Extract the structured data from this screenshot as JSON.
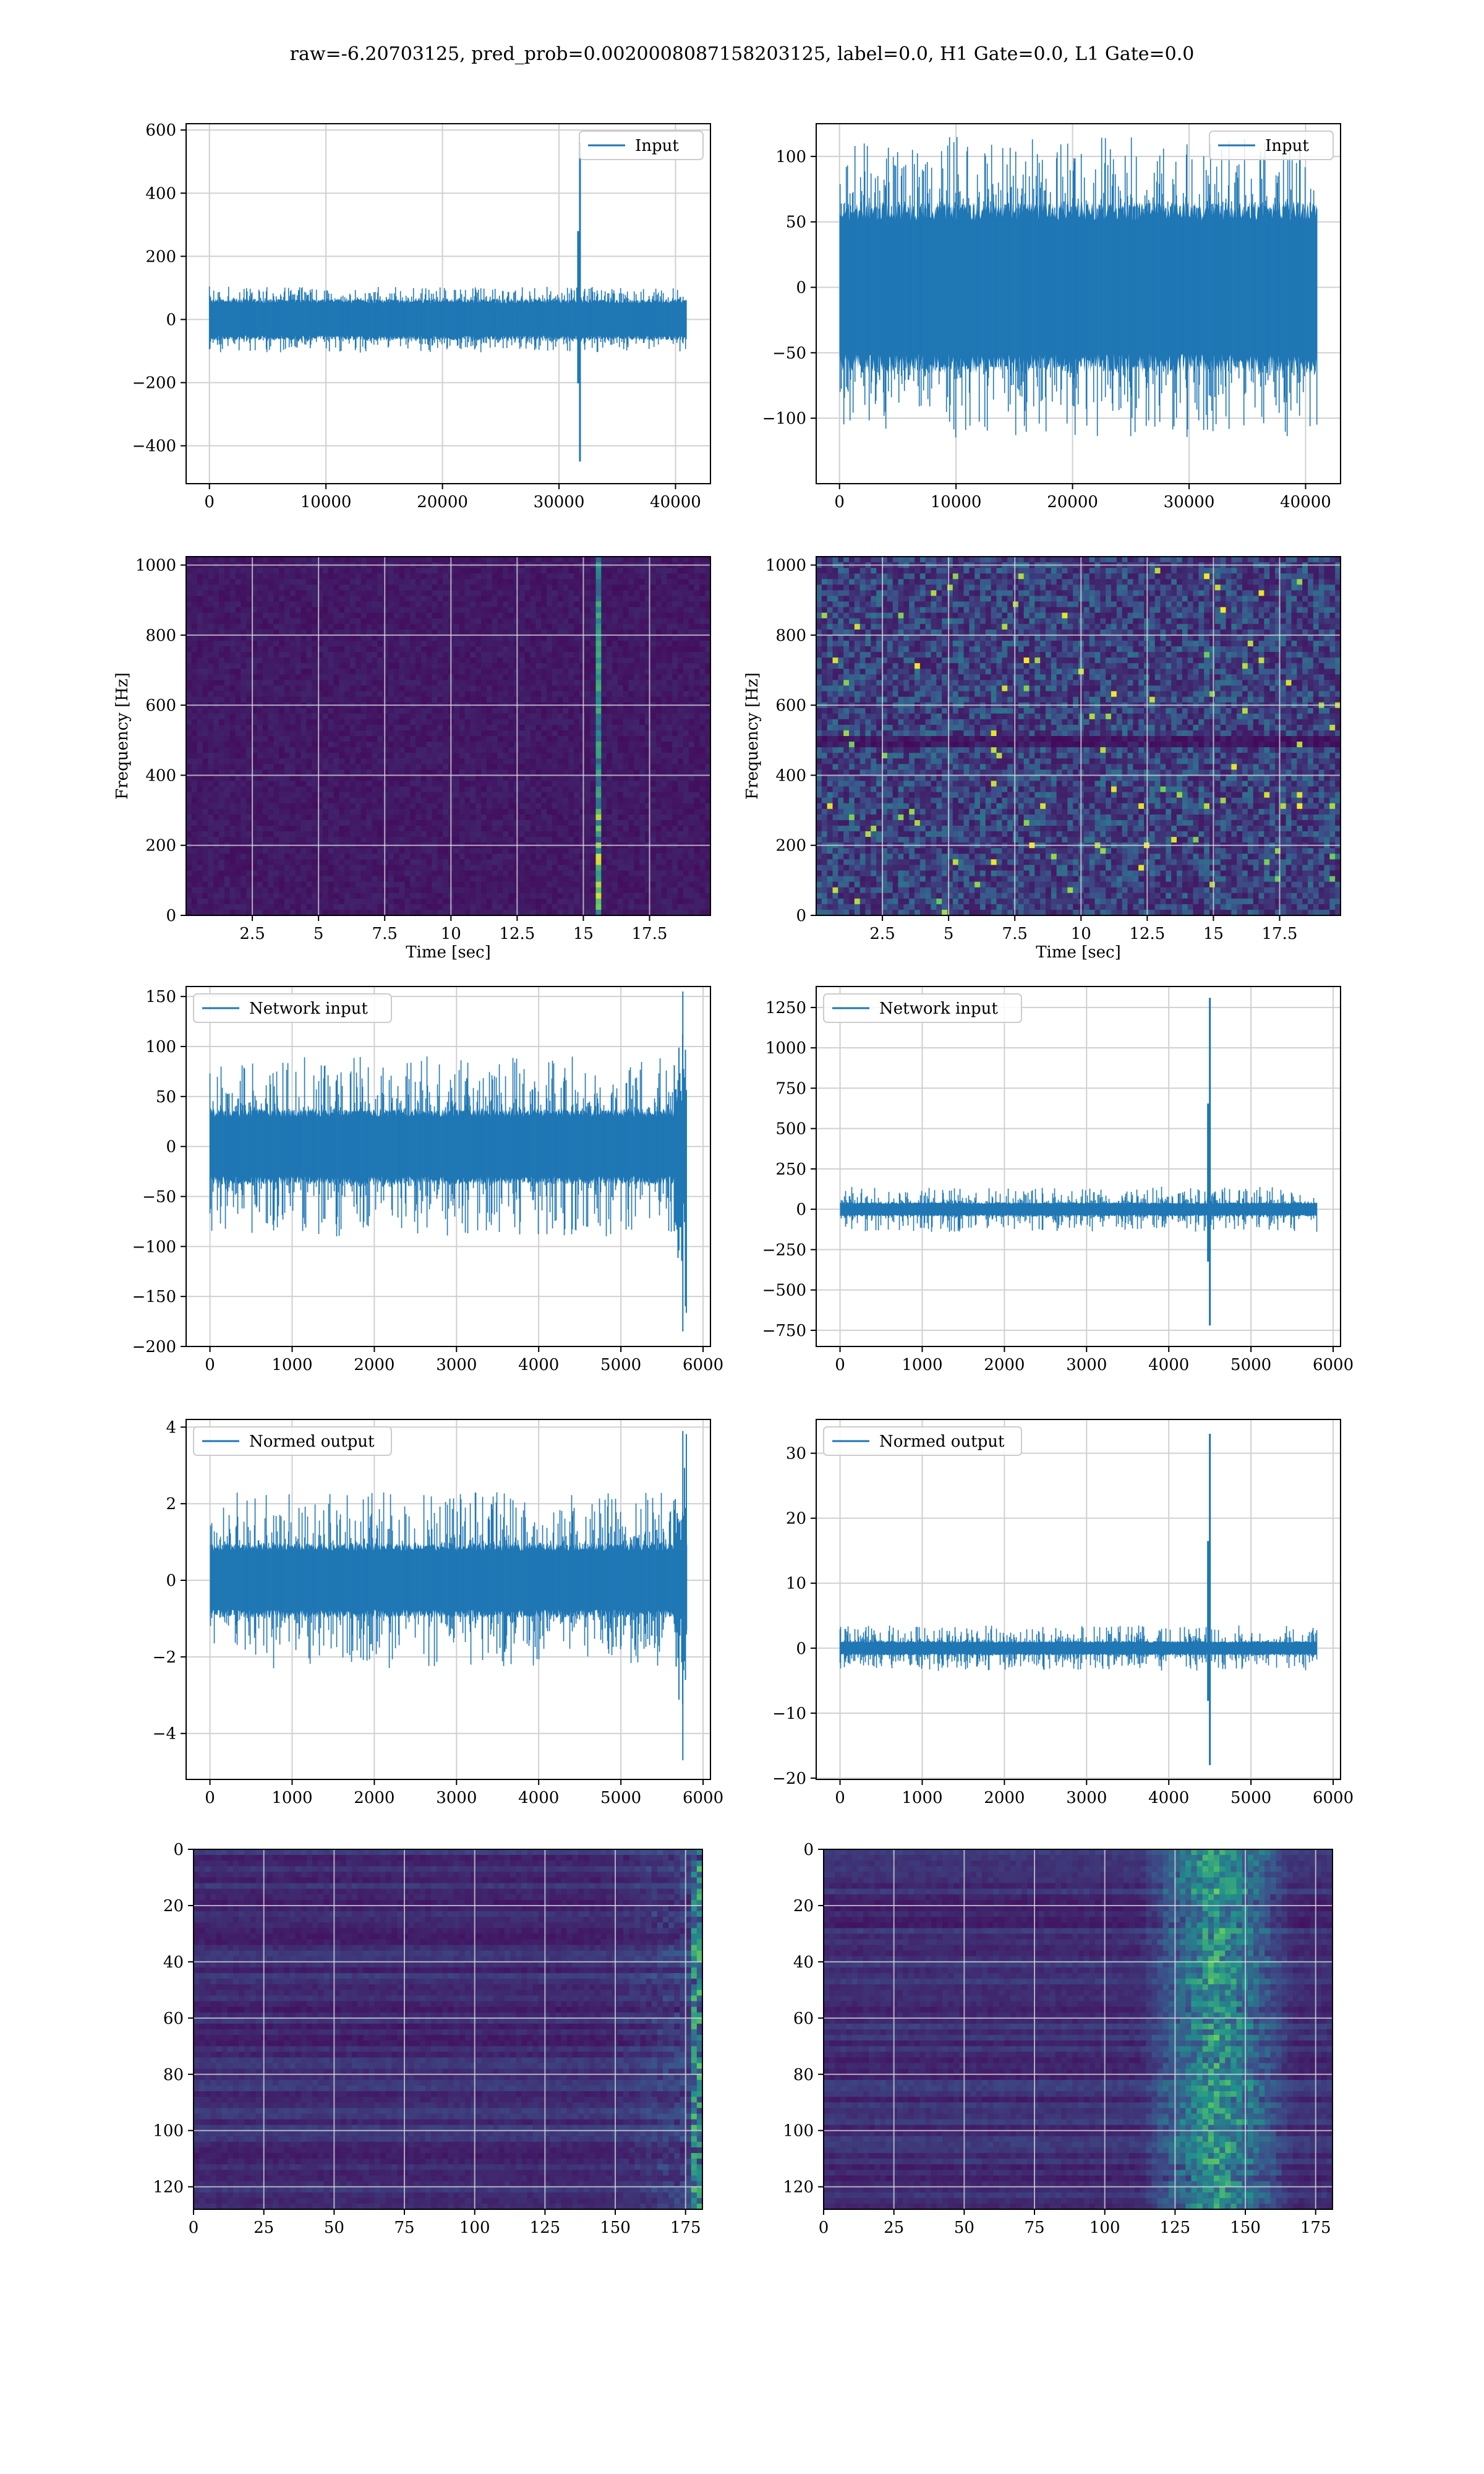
{
  "title": "raw=-6.20703125, pred_prob=0.0020008087158203125, label=0.0, H1 Gate=0.0, L1 Gate=0.0",
  "colors": {
    "line": "#1f77b4",
    "grid": "#d0d0d0",
    "viridis_dark": "#440154",
    "viridis_mid": "#3b528b",
    "viridis_teal": "#21908d",
    "viridis_green": "#5dc963",
    "viridis_yellow": "#fde725"
  },
  "chart_data": [
    {
      "id": "input-h1",
      "type": "line",
      "legend": "Input",
      "legend_pos": "top-right",
      "xlim": [
        -2000,
        43000
      ],
      "ylim": [
        -520,
        620
      ],
      "xticks": [
        0,
        10000,
        20000,
        30000,
        40000
      ],
      "yticks": [
        -400,
        -200,
        0,
        200,
        400,
        600
      ],
      "n_samples": 40960,
      "noise_amplitude": 60,
      "noise_max": 105,
      "glitch": {
        "x": 31800,
        "peak": 560,
        "trough": -450
      }
    },
    {
      "id": "input-l1",
      "type": "line",
      "legend": "Input",
      "legend_pos": "top-right",
      "xlim": [
        -2000,
        43000
      ],
      "ylim": [
        -150,
        125
      ],
      "xticks": [
        0,
        10000,
        20000,
        30000,
        40000
      ],
      "yticks": [
        -100,
        -50,
        0,
        50,
        100
      ],
      "n_samples": 40960,
      "noise_amplitude": 60,
      "noise_max": 115
    },
    {
      "id": "spec-h1",
      "type": "heatmap",
      "kind": "spectrogram",
      "xlabel": "Time [sec]",
      "ylabel": "Frequency [Hz]",
      "xlim": [
        0,
        19.8
      ],
      "ylim": [
        0,
        1024
      ],
      "xticks": [
        2.5,
        5.0,
        7.5,
        10.0,
        12.5,
        15.0,
        17.5
      ],
      "yticks": [
        0,
        200,
        400,
        600,
        800,
        1000
      ],
      "glitch_time": 15.5
    },
    {
      "id": "spec-l1",
      "type": "heatmap",
      "kind": "spectrogram",
      "xlabel": "Time [sec]",
      "ylabel": "Frequency [Hz]",
      "xlim": [
        0,
        19.8
      ],
      "ylim": [
        0,
        1024
      ],
      "xticks": [
        2.5,
        5.0,
        7.5,
        10.0,
        12.5,
        15.0,
        17.5
      ],
      "yticks": [
        0,
        200,
        400,
        600,
        800,
        1000
      ],
      "band_hz": 495
    },
    {
      "id": "net-h1",
      "type": "line",
      "legend": "Network input",
      "legend_pos": "top-left",
      "xlim": [
        -290,
        6090
      ],
      "ylim": [
        -200,
        160
      ],
      "xticks": [
        0,
        1000,
        2000,
        3000,
        4000,
        5000,
        6000
      ],
      "yticks": [
        -200,
        -150,
        -100,
        -50,
        0,
        50,
        100,
        150
      ],
      "n_samples": 5800,
      "noise_amplitude": 35,
      "noise_max": 90,
      "tail": {
        "start": 5650,
        "peak": 155,
        "trough": -185
      }
    },
    {
      "id": "net-l1",
      "type": "line",
      "legend": "Network input",
      "legend_pos": "top-left",
      "xlim": [
        -290,
        6090
      ],
      "ylim": [
        -850,
        1380
      ],
      "xticks": [
        0,
        1000,
        2000,
        3000,
        4000,
        5000,
        6000
      ],
      "yticks": [
        -750,
        -500,
        -250,
        0,
        250,
        500,
        750,
        1000,
        1250
      ],
      "n_samples": 5800,
      "noise_amplitude": 40,
      "noise_max": 140,
      "glitch": {
        "x": 4500,
        "peak": 1310,
        "trough": -720
      }
    },
    {
      "id": "norm-h1",
      "type": "line",
      "legend": "Normed output",
      "legend_pos": "top-left",
      "xlim": [
        -290,
        6090
      ],
      "ylim": [
        -5.2,
        4.2
      ],
      "xticks": [
        0,
        1000,
        2000,
        3000,
        4000,
        5000,
        6000
      ],
      "yticks": [
        -4,
        -2,
        0,
        2,
        4
      ],
      "n_samples": 5800,
      "noise_amplitude": 0.9,
      "noise_max": 2.3,
      "tail": {
        "start": 5650,
        "peak": 3.9,
        "trough": -4.7
      }
    },
    {
      "id": "norm-l1",
      "type": "line",
      "legend": "Normed output",
      "legend_pos": "top-left",
      "xlim": [
        -290,
        6090
      ],
      "ylim": [
        -20.2,
        35.2
      ],
      "xticks": [
        0,
        1000,
        2000,
        3000,
        4000,
        5000,
        6000
      ],
      "yticks": [
        -20,
        -10,
        0,
        10,
        20,
        30
      ],
      "n_samples": 5800,
      "noise_amplitude": 1.0,
      "noise_max": 3.5,
      "glitch": {
        "x": 4500,
        "peak": 33,
        "trough": -18
      }
    },
    {
      "id": "feat-h1",
      "type": "heatmap",
      "kind": "feature-map",
      "xlim": [
        0,
        181
      ],
      "ylim": [
        128,
        0
      ],
      "xticks": [
        0,
        25,
        50,
        75,
        100,
        125,
        150,
        175
      ],
      "yticks": [
        0,
        20,
        40,
        60,
        80,
        100,
        120
      ],
      "hot_region_x": [
        145,
        181
      ]
    },
    {
      "id": "feat-l1",
      "type": "heatmap",
      "kind": "feature-map",
      "xlim": [
        0,
        181
      ],
      "ylim": [
        128,
        0
      ],
      "xticks": [
        0,
        25,
        50,
        75,
        100,
        125,
        150,
        175
      ],
      "yticks": [
        0,
        20,
        40,
        60,
        80,
        100,
        120
      ],
      "hot_region_x": [
        100,
        181
      ],
      "hot_center_x": 140
    }
  ]
}
